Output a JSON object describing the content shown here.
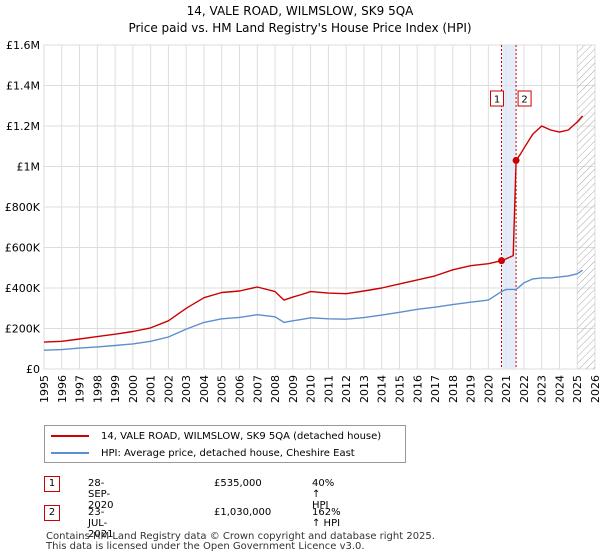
{
  "chart_data": {
    "type": "line",
    "title": "14, VALE ROAD, WILMSLOW, SK9 5QA",
    "subtitle": "Price paid vs. HM Land Registry's House Price Index (HPI)",
    "xlabel": "",
    "ylabel": "",
    "xlim": [
      1995,
      2026
    ],
    "ylim": [
      0,
      1600000
    ],
    "y_ticks": [
      0,
      200000,
      400000,
      600000,
      800000,
      1000000,
      1200000,
      1400000,
      1600000
    ],
    "y_tick_labels": [
      "£0",
      "£200K",
      "£400K",
      "£600K",
      "£800K",
      "£1M",
      "£1.2M",
      "£1.4M",
      "£1.6M"
    ],
    "x_ticks": [
      1995,
      1996,
      1997,
      1998,
      1999,
      2000,
      2001,
      2002,
      2003,
      2004,
      2005,
      2006,
      2007,
      2008,
      2009,
      2010,
      2011,
      2012,
      2013,
      2014,
      2015,
      2016,
      2017,
      2018,
      2019,
      2020,
      2021,
      2022,
      2023,
      2024,
      2025,
      2026
    ],
    "grid": true,
    "series": [
      {
        "name": "14, VALE ROAD, WILMSLOW, SK9 5QA (detached house)",
        "color": "#cc0000",
        "x": [
          1995,
          1996,
          1997,
          1998,
          1999,
          2000,
          2001,
          2002,
          2003,
          2004,
          2005,
          2006,
          2007,
          2008,
          2008.5,
          2009,
          2009.5,
          2010,
          2011,
          2012,
          2013,
          2014,
          2015,
          2016,
          2017,
          2018,
          2019,
          2020,
          2020.74,
          2020.9,
          2021.4,
          2021.56,
          2021.8,
          2022,
          2022.5,
          2023,
          2023.5,
          2024,
          2024.5,
          2025,
          2025.3
        ],
        "y": [
          133000,
          137000,
          148000,
          160000,
          172000,
          185000,
          203000,
          238000,
          300000,
          352000,
          378000,
          385000,
          405000,
          382000,
          340000,
          355000,
          368000,
          382000,
          375000,
          372000,
          385000,
          400000,
          420000,
          440000,
          460000,
          490000,
          510000,
          520000,
          535000,
          540000,
          560000,
          1030000,
          1060000,
          1090000,
          1160000,
          1200000,
          1180000,
          1170000,
          1180000,
          1220000,
          1250000
        ]
      },
      {
        "name": "HPI: Average price, detached house, Cheshire East",
        "color": "#5b8fd0",
        "x": [
          1995,
          1996,
          1997,
          1998,
          1999,
          2000,
          2001,
          2002,
          2003,
          2004,
          2005,
          2006,
          2007,
          2008,
          2008.5,
          2009,
          2009.5,
          2010,
          2011,
          2012,
          2013,
          2014,
          2015,
          2016,
          2017,
          2018,
          2019,
          2020,
          2020.74,
          2021,
          2021.56,
          2022,
          2022.5,
          2023,
          2023.5,
          2024,
          2024.5,
          2025,
          2025.3
        ],
        "y": [
          93000,
          96000,
          103000,
          109000,
          116000,
          124000,
          137000,
          158000,
          197000,
          230000,
          248000,
          255000,
          268000,
          258000,
          230000,
          238000,
          245000,
          253000,
          248000,
          246000,
          254000,
          266000,
          280000,
          295000,
          305000,
          318000,
          330000,
          340000,
          382000,
          393000,
          393000,
          425000,
          445000,
          450000,
          450000,
          455000,
          460000,
          470000,
          488000
        ]
      }
    ],
    "annotations": [
      {
        "label": "1",
        "x": 2020.74
      },
      {
        "label": "2",
        "x": 2021.56
      }
    ],
    "shaded_region": {
      "x_start": 2020.74,
      "x_end": 2021.56
    },
    "hatched_region": {
      "x_start": 2025.0,
      "x_end": 2026
    }
  },
  "legend": {
    "property_label": "14, VALE ROAD, WILMSLOW, SK9 5QA (detached house)",
    "hpi_label": "HPI: Average price, detached house, Cheshire East"
  },
  "transactions": [
    {
      "num": "1",
      "date": "28-SEP-2020",
      "price": "£535,000",
      "hpi": "40% ↑ HPI"
    },
    {
      "num": "2",
      "date": "23-JUL-2021",
      "price": "£1,030,000",
      "hpi": "162% ↑ HPI"
    }
  ],
  "footer": {
    "line1": "Contains HM Land Registry data © Crown copyright and database right 2025.",
    "line2": "This data is licensed under the Open Government Licence v3.0."
  }
}
